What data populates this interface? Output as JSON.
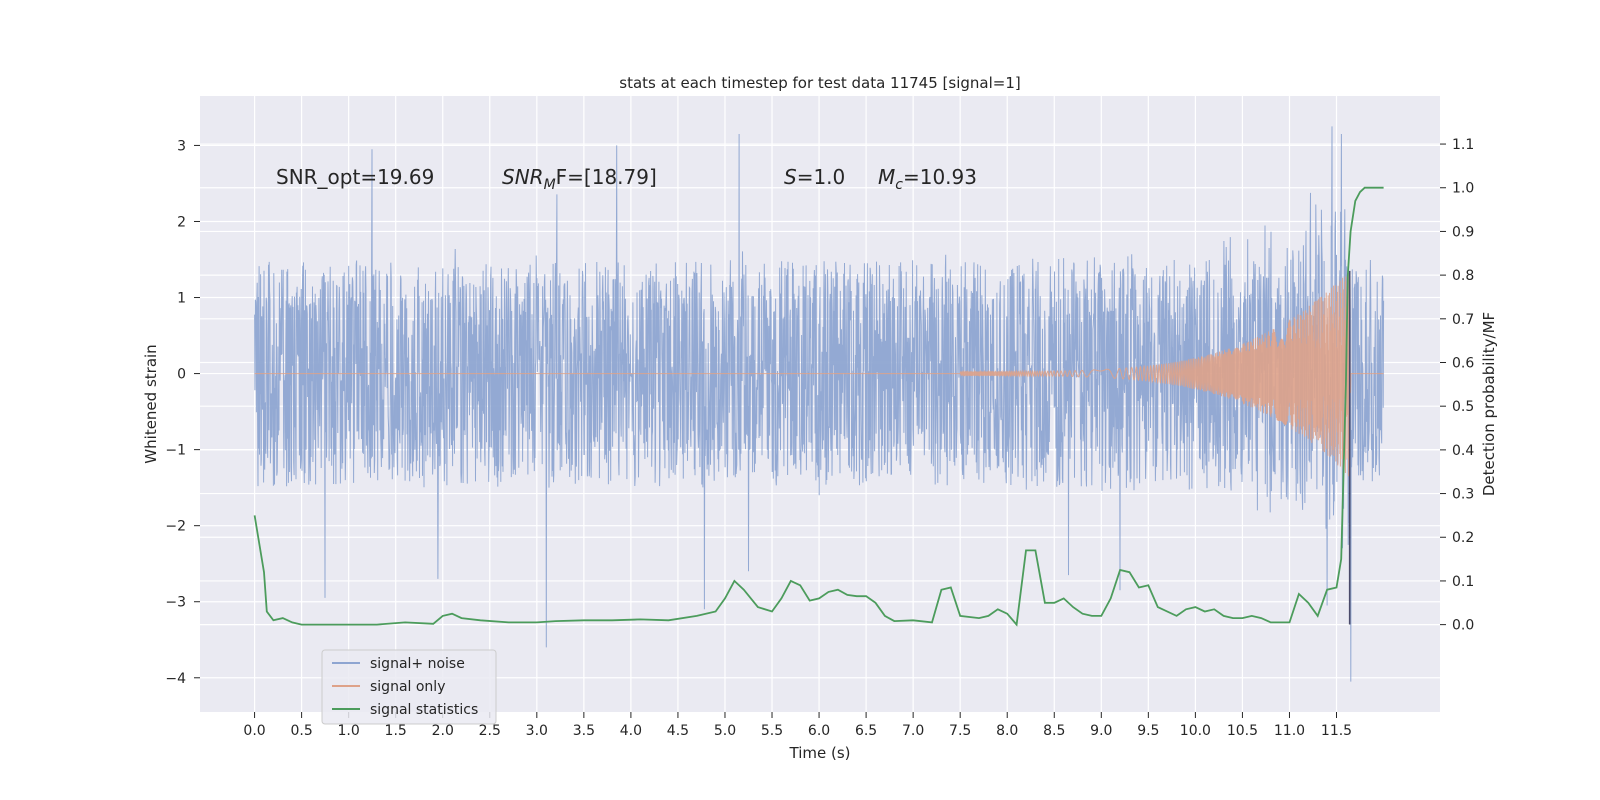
{
  "chart_data": {
    "type": "line",
    "title": "stats at each timestep for test data 11745 [signal=1]",
    "xlabel": "Time (s)",
    "ylabel": "Whitened strain",
    "y2label": "Detection probability/MF",
    "xlim": [
      -0.58,
      12.6
    ],
    "ylim": [
      -4.45,
      3.65
    ],
    "y2lim": [
      -0.2,
      1.21
    ],
    "x_ticks": [
      "0.0",
      "0.5",
      "1.0",
      "1.5",
      "2.0",
      "2.5",
      "3.0",
      "3.5",
      "4.0",
      "4.5",
      "5.0",
      "5.5",
      "6.0",
      "6.5",
      "7.0",
      "7.5",
      "8.0",
      "8.5",
      "9.0",
      "9.5",
      "10.0",
      "10.5",
      "11.0",
      "11.5"
    ],
    "y_ticks": [
      "3",
      "2",
      "1",
      "0",
      "−1",
      "−2",
      "−3",
      "−4"
    ],
    "y2_ticks": [
      "1.1",
      "1.0",
      "0.9",
      "0.8",
      "0.7",
      "0.6",
      "0.5",
      "0.4",
      "0.3",
      "0.2",
      "0.1",
      "0.0"
    ],
    "grid": true,
    "legend_position": "lower-left",
    "annotations": {
      "snr_opt": "SNR_opt=19.69",
      "snr_mf_base": "SNR",
      "snr_mf_sub": "M",
      "snr_mf_rest": "F=[18.79]",
      "s_sym": "S",
      "s_rest": "=1.0",
      "mc_base": "M",
      "mc_sub": "c",
      "mc_rest": "=10.93"
    },
    "series": [
      {
        "name": "signal+ noise",
        "color": "#8ea5d1",
        "note_x_range": [
          0.0,
          12.0
        ],
        "envelope_typical": [
          -1.3,
          1.4
        ],
        "spikes": [
          {
            "x": 1.25,
            "y": 2.95
          },
          {
            "x": 3.1,
            "y": -3.6
          },
          {
            "x": 3.85,
            "y": 3.0
          },
          {
            "x": 5.15,
            "y": 3.15
          },
          {
            "x": 4.78,
            "y": -3.1
          },
          {
            "x": 11.45,
            "y": 3.25
          },
          {
            "x": 11.55,
            "y": 3.15
          },
          {
            "x": 11.65,
            "y": -4.05
          },
          {
            "x": 0.75,
            "y": -2.95
          },
          {
            "x": 1.95,
            "y": -2.7
          },
          {
            "x": 5.25,
            "y": -2.6
          },
          {
            "x": 8.65,
            "y": -2.65
          },
          {
            "x": 9.2,
            "y": -2.85
          },
          {
            "x": 11.4,
            "y": -3.05
          }
        ]
      },
      {
        "name": "signal only",
        "color": "#dea289",
        "chirp_start": 7.5,
        "chirp_end": 11.65,
        "final_amplitude": 1.35
      },
      {
        "name": "signal statistics",
        "color": "#4c9c5c",
        "axis": "right",
        "x": [
          0.0,
          0.1,
          0.13,
          0.2,
          0.3,
          0.4,
          0.5,
          0.7,
          1.0,
          1.3,
          1.6,
          1.9,
          2.0,
          2.1,
          2.2,
          2.4,
          2.7,
          3.0,
          3.2,
          3.5,
          3.8,
          4.1,
          4.4,
          4.7,
          4.9,
          5.0,
          5.1,
          5.2,
          5.35,
          5.5,
          5.6,
          5.7,
          5.8,
          5.9,
          6.0,
          6.1,
          6.2,
          6.3,
          6.4,
          6.5,
          6.6,
          6.7,
          6.8,
          7.0,
          7.2,
          7.3,
          7.4,
          7.5,
          7.7,
          7.8,
          7.9,
          8.0,
          8.1,
          8.2,
          8.3,
          8.4,
          8.5,
          8.6,
          8.7,
          8.8,
          8.9,
          9.0,
          9.1,
          9.2,
          9.3,
          9.4,
          9.5,
          9.6,
          9.8,
          9.9,
          10.0,
          10.1,
          10.2,
          10.3,
          10.4,
          10.5,
          10.6,
          10.7,
          10.8,
          11.0,
          11.1,
          11.2,
          11.3,
          11.4,
          11.5,
          11.55,
          11.6,
          11.62,
          11.65,
          11.7,
          11.75,
          11.8,
          11.9,
          12.0
        ],
        "values": [
          0.25,
          0.12,
          0.03,
          0.01,
          0.015,
          0.005,
          0.0,
          0.0,
          0.0,
          0.0,
          0.005,
          0.002,
          0.02,
          0.025,
          0.015,
          0.01,
          0.005,
          0.005,
          0.008,
          0.01,
          0.01,
          0.012,
          0.01,
          0.02,
          0.03,
          0.06,
          0.1,
          0.08,
          0.04,
          0.03,
          0.06,
          0.1,
          0.09,
          0.055,
          0.06,
          0.075,
          0.08,
          0.068,
          0.065,
          0.065,
          0.05,
          0.02,
          0.008,
          0.01,
          0.005,
          0.08,
          0.085,
          0.02,
          0.015,
          0.02,
          0.035,
          0.025,
          0.0,
          0.17,
          0.17,
          0.05,
          0.05,
          0.06,
          0.04,
          0.025,
          0.02,
          0.02,
          0.06,
          0.125,
          0.12,
          0.085,
          0.09,
          0.04,
          0.02,
          0.035,
          0.04,
          0.03,
          0.035,
          0.02,
          0.015,
          0.015,
          0.02,
          0.015,
          0.005,
          0.005,
          0.07,
          0.05,
          0.02,
          0.08,
          0.085,
          0.15,
          0.55,
          0.8,
          0.9,
          0.97,
          0.99,
          1.0,
          1.0,
          1.0
        ]
      }
    ]
  },
  "legend": {
    "items": [
      {
        "label": "signal+ noise",
        "color": "#8ea5d1"
      },
      {
        "label": "signal only",
        "color": "#dea289"
      },
      {
        "label": "signal statistics",
        "color": "#4c9c5c"
      }
    ]
  }
}
